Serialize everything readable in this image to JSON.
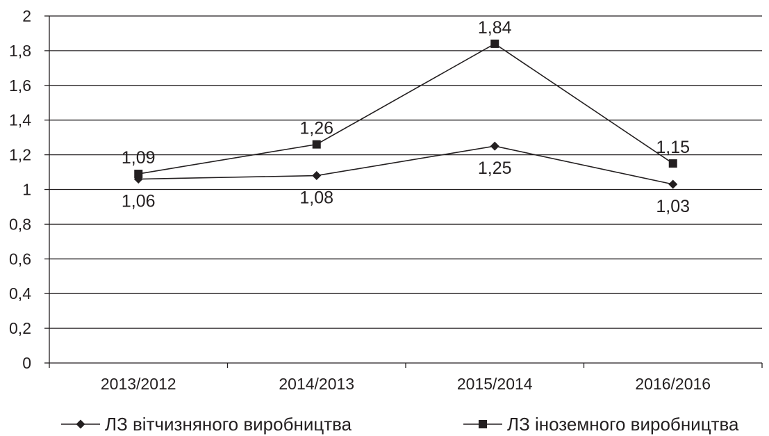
{
  "chart_data": {
    "type": "line",
    "categories": [
      "2013/2012",
      "2014/2013",
      "2015/2014",
      "2016/2016"
    ],
    "series": [
      {
        "name": "ЛЗ вітчизняного виробництва",
        "marker": "diamond",
        "values": [
          1.06,
          1.08,
          1.25,
          1.03
        ],
        "labels": [
          "1,06",
          "1,08",
          "1,25",
          "1,03"
        ]
      },
      {
        "name": "ЛЗ іноземного виробництва",
        "marker": "square",
        "values": [
          1.09,
          1.26,
          1.84,
          1.15
        ],
        "labels": [
          "1,09",
          "1,26",
          "1,84",
          "1,15"
        ]
      }
    ],
    "ylim": [
      0,
      2
    ],
    "yticks": [
      0,
      0.2,
      0.4,
      0.6,
      0.8,
      1,
      1.2,
      1.4,
      1.6,
      1.8,
      2
    ],
    "ytick_labels": [
      "0",
      "0,2",
      "0,4",
      "0,6",
      "0,8",
      "1",
      "1,2",
      "1,4",
      "1,6",
      "1,8",
      "2"
    ],
    "grid": true,
    "legend_position": "bottom",
    "colors": {
      "ink": "#231f20",
      "background": "#ffffff"
    }
  }
}
